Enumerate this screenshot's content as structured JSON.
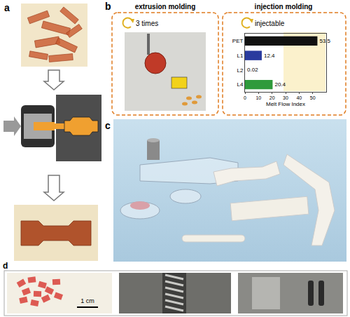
{
  "panels": {
    "a": {
      "label": "a"
    },
    "b": {
      "label": "b",
      "extrusion": {
        "title": "extrusion molding",
        "note": "3 times"
      },
      "injection": {
        "title": "injection molding",
        "note": "injectable"
      }
    },
    "c": {
      "label": "c"
    },
    "d": {
      "label": "d",
      "scale_bar": "1 cm"
    }
  },
  "chart_data": {
    "type": "bar",
    "orientation": "horizontal",
    "categories": [
      "PET",
      "L1",
      "L2",
      "L4"
    ],
    "values": [
      53.5,
      12.4,
      0.02,
      20.4
    ],
    "colors": [
      "#111111",
      "#2a3b9e",
      "#7b3fa0",
      "#2f9a3c"
    ],
    "xlabel": "Melt Flow Index",
    "xlim": [
      0,
      60
    ],
    "xticks": [
      0,
      10,
      20,
      30,
      40,
      50
    ],
    "data_labels": true,
    "grid": false
  }
}
